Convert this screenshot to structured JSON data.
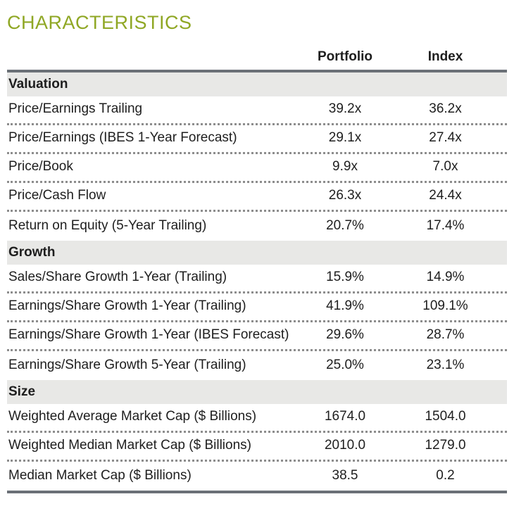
{
  "page": {
    "title": "CHARACTERISTICS"
  },
  "colors": {
    "title_green": "#8FA724",
    "table_border_dark": "#6B7077",
    "section_band_gray": "#E8E8E6",
    "dotted_separator_gray": "#8D8D8D",
    "text": "#1E1E1E"
  },
  "table": {
    "columns": {
      "portfolio": "Portfolio",
      "index": "Index"
    },
    "sections": [
      {
        "name": "Valuation",
        "rows": [
          {
            "label": "Price/Earnings Trailing",
            "portfolio": "39.2x",
            "index": "36.2x"
          },
          {
            "label": "Price/Earnings (IBES 1-Year Forecast)",
            "portfolio": "29.1x",
            "index": "27.4x"
          },
          {
            "label": "Price/Book",
            "portfolio": "9.9x",
            "index": "7.0x"
          },
          {
            "label": "Price/Cash Flow",
            "portfolio": "26.3x",
            "index": "24.4x"
          },
          {
            "label": "Return on Equity (5-Year Trailing)",
            "portfolio": "20.7%",
            "index": "17.4%"
          }
        ]
      },
      {
        "name": "Growth",
        "rows": [
          {
            "label": "Sales/Share Growth 1-Year (Trailing)",
            "portfolio": "15.9%",
            "index": "14.9%"
          },
          {
            "label": "Earnings/Share Growth 1-Year (Trailing)",
            "portfolio": "41.9%",
            "index": "109.1%"
          },
          {
            "label": "Earnings/Share Growth 1-Year (IBES Forecast)",
            "portfolio": "29.6%",
            "index": "28.7%"
          },
          {
            "label": "Earnings/Share Growth 5-Year (Trailing)",
            "portfolio": "25.0%",
            "index": "23.1%"
          }
        ]
      },
      {
        "name": "Size",
        "rows": [
          {
            "label": "Weighted Average Market Cap ($ Billions)",
            "portfolio": "1674.0",
            "index": "1504.0"
          },
          {
            "label": "Weighted Median Market Cap ($ Billions)",
            "portfolio": "2010.0",
            "index": "1279.0"
          },
          {
            "label": "Median Market Cap ($ Billions)",
            "portfolio": "38.5",
            "index": "0.2"
          }
        ]
      }
    ]
  },
  "chart_data": {
    "type": "table",
    "title": "CHARACTERISTICS",
    "columns": [
      "",
      "Portfolio",
      "Index"
    ],
    "rows": [
      [
        "Valuation",
        "",
        ""
      ],
      [
        "Price/Earnings Trailing",
        "39.2x",
        "36.2x"
      ],
      [
        "Price/Earnings (IBES 1-Year Forecast)",
        "29.1x",
        "27.4x"
      ],
      [
        "Price/Book",
        "9.9x",
        "7.0x"
      ],
      [
        "Price/Cash Flow",
        "26.3x",
        "24.4x"
      ],
      [
        "Return on Equity (5-Year Trailing)",
        "20.7%",
        "17.4%"
      ],
      [
        "Growth",
        "",
        ""
      ],
      [
        "Sales/Share Growth 1-Year (Trailing)",
        "15.9%",
        "14.9%"
      ],
      [
        "Earnings/Share Growth 1-Year (Trailing)",
        "41.9%",
        "109.1%"
      ],
      [
        "Earnings/Share Growth 1-Year (IBES Forecast)",
        "29.6%",
        "28.7%"
      ],
      [
        "Earnings/Share Growth 5-Year (Trailing)",
        "25.0%",
        "23.1%"
      ],
      [
        "Size",
        "",
        ""
      ],
      [
        "Weighted Average Market Cap ($ Billions)",
        "1674.0",
        "1504.0"
      ],
      [
        "Weighted Median Market Cap ($ Billions)",
        "2010.0",
        "1279.0"
      ],
      [
        "Median Market Cap ($ Billions)",
        "38.5",
        "0.2"
      ]
    ]
  }
}
